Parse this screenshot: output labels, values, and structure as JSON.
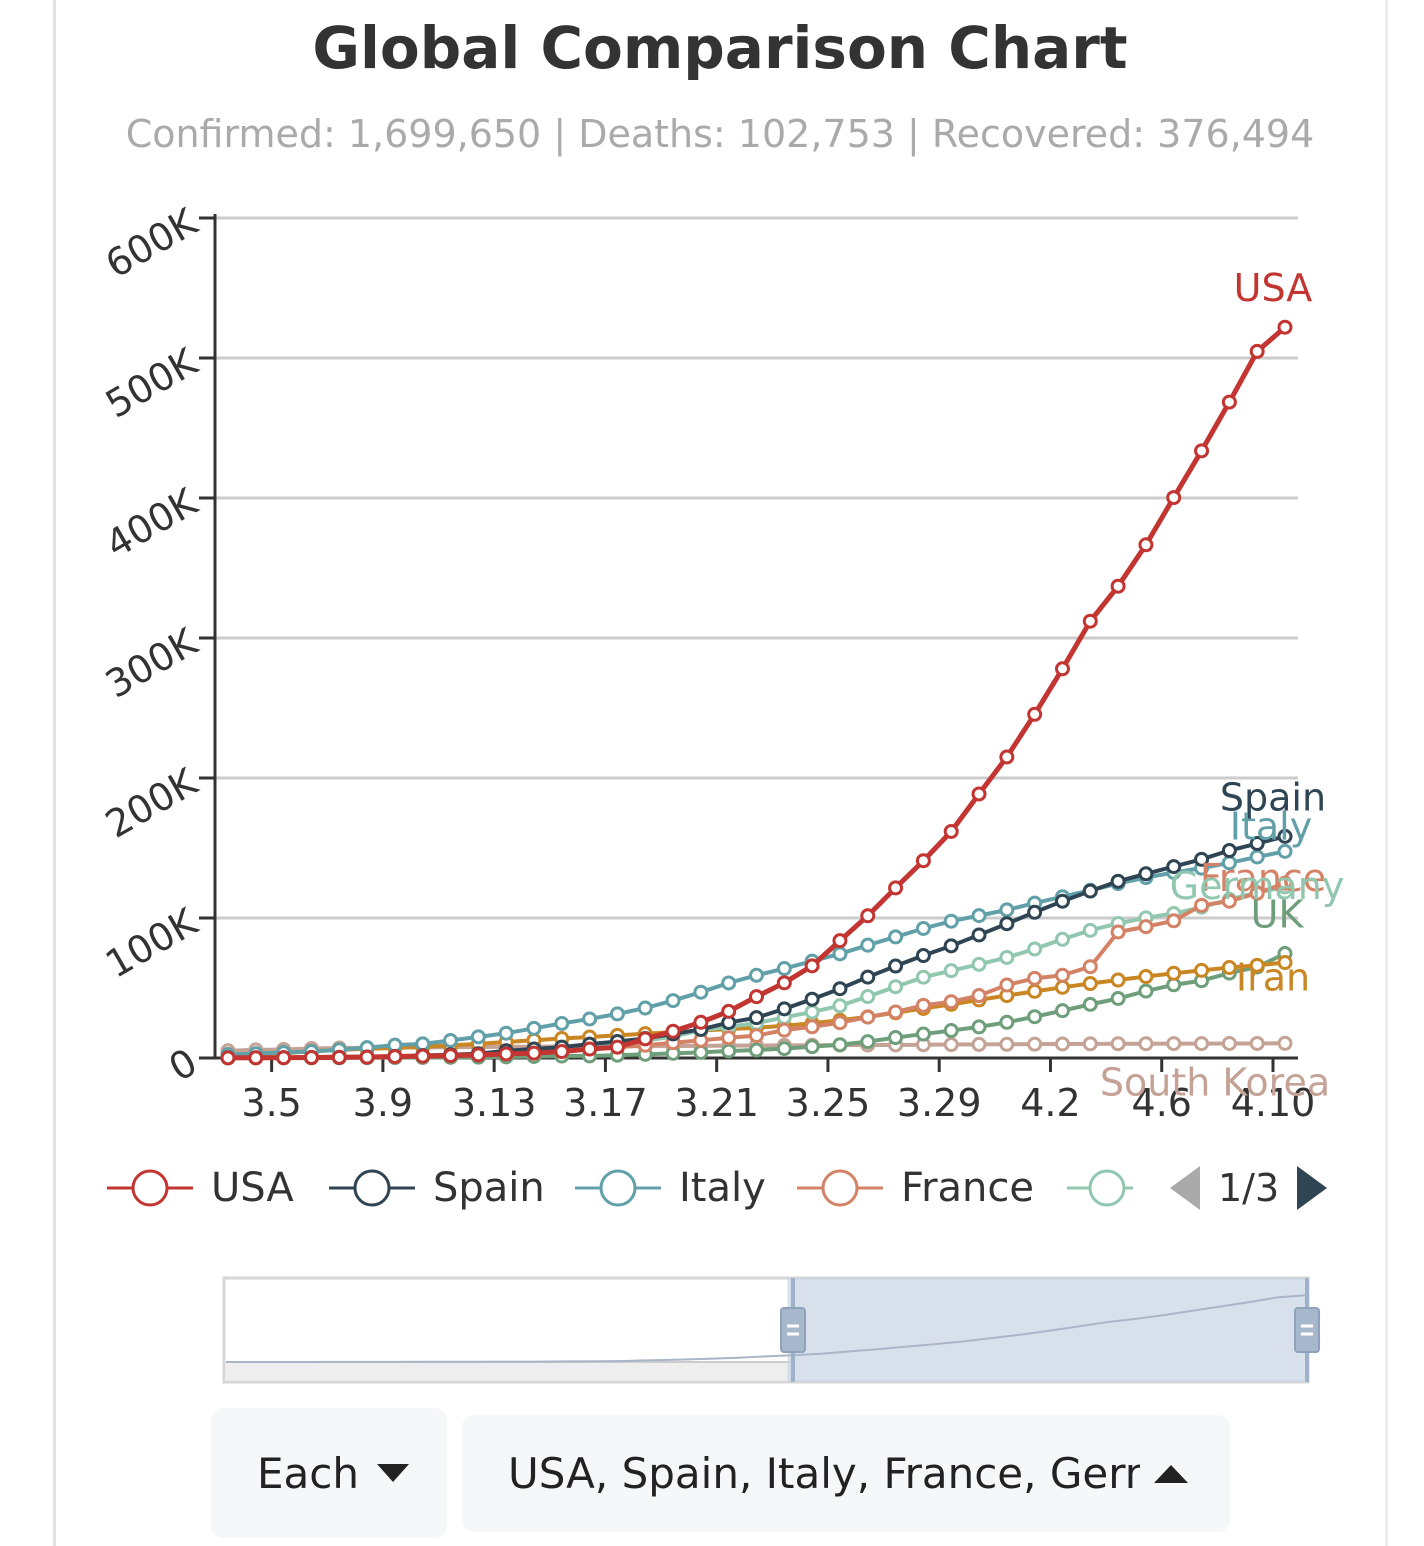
{
  "title": "Global Comparison Chart",
  "subtitle": "Confirmed: 1,699,650 | Deaths: 102,753 | Recovered: 376,494",
  "chart_data": {
    "type": "line",
    "title": "Global Comparison Chart",
    "x": [
      "3.3",
      "3.4",
      "3.5",
      "3.6",
      "3.7",
      "3.8",
      "3.9",
      "3.10",
      "3.11",
      "3.12",
      "3.13",
      "3.14",
      "3.15",
      "3.16",
      "3.17",
      "3.18",
      "3.19",
      "3.20",
      "3.21",
      "3.22",
      "3.23",
      "3.24",
      "3.25",
      "3.26",
      "3.27",
      "3.28",
      "3.29",
      "3.30",
      "3.31",
      "4.1",
      "4.2",
      "4.3",
      "4.4",
      "4.5",
      "4.6",
      "4.7",
      "4.8",
      "4.9",
      "4.10"
    ],
    "x_tick_labels": [
      "3.5",
      "3.9",
      "3.13",
      "3.17",
      "3.21",
      "3.25",
      "3.29",
      "4.2",
      "4.6",
      "4.10"
    ],
    "y_tick_labels": [
      "0",
      "100K",
      "200K",
      "300K",
      "400K",
      "500K",
      "600K"
    ],
    "ylim": [
      0,
      600000
    ],
    "grid": true,
    "legend_position": "bottom",
    "series": [
      {
        "name": "USA",
        "color": "#c23531",
        "values": [
          100,
          150,
          220,
          320,
          450,
          600,
          1000,
          1300,
          1700,
          2200,
          2900,
          3500,
          4600,
          6400,
          7800,
          13700,
          19100,
          25500,
          33300,
          43800,
          53700,
          65800,
          83800,
          101600,
          121500,
          140900,
          161800,
          188600,
          215000,
          245500,
          278000,
          312000,
          337000,
          366600,
          400300,
          433700,
          468500,
          504700,
          522000
        ]
      },
      {
        "name": "Spain",
        "color": "#2f4554",
        "values": [
          150,
          200,
          260,
          370,
          430,
          670,
          1200,
          1700,
          2300,
          3000,
          5200,
          6400,
          7800,
          9900,
          11800,
          13900,
          17200,
          20400,
          25300,
          28800,
          35100,
          42000,
          49500,
          57800,
          65700,
          73200,
          80100,
          87900,
          95900,
          104100,
          112000,
          119200,
          126200,
          131600,
          136700,
          141900,
          148200,
          153200,
          158300
        ]
      },
      {
        "name": "Italy",
        "color": "#61a0a8",
        "values": [
          2500,
          3100,
          3900,
          4600,
          5900,
          7400,
          9200,
          10100,
          12500,
          15100,
          17700,
          21200,
          24700,
          27900,
          31500,
          35700,
          41000,
          47000,
          53600,
          59100,
          63900,
          69200,
          74400,
          80600,
          86500,
          92500,
          97700,
          101700,
          105800,
          110600,
          115200,
          119800,
          124600,
          128900,
          132500,
          135600,
          139400,
          143600,
          147600
        ]
      },
      {
        "name": "France",
        "color": "#d48265",
        "values": [
          200,
          280,
          380,
          650,
          950,
          1100,
          1400,
          1800,
          2300,
          2900,
          3700,
          4500,
          5400,
          6600,
          7700,
          9100,
          10900,
          12600,
          14500,
          16000,
          19900,
          22300,
          25200,
          29200,
          32900,
          37600,
          40200,
          44600,
          52100,
          56900,
          59100,
          65200,
          90000,
          93800,
          98000,
          109000,
          112000,
          117700,
          124900
        ]
      },
      {
        "name": "Germany",
        "color": "#91c7ae",
        "values": [
          200,
          260,
          400,
          640,
          800,
          1000,
          1200,
          1600,
          1900,
          2700,
          3600,
          4600,
          5800,
          7300,
          9300,
          12300,
          15300,
          19800,
          22200,
          24900,
          29000,
          32900,
          37300,
          43900,
          50900,
          57700,
          62400,
          66900,
          71800,
          77900,
          84800,
          91200,
          96100,
          100100,
          103200,
          107700,
          113300,
          118200,
          122200
        ]
      },
      {
        "name": "Iran",
        "color": "#ca8622",
        "values": [
          2300,
          2900,
          3500,
          4700,
          5800,
          6600,
          7100,
          8000,
          9000,
          10100,
          11400,
          12700,
          13900,
          15000,
          16200,
          17400,
          18400,
          19600,
          20600,
          21600,
          23000,
          24800,
          27000,
          29400,
          32300,
          35400,
          38300,
          41500,
          44600,
          47600,
          50500,
          53200,
          55700,
          58200,
          60500,
          62600,
          64600,
          66200,
          68200
        ]
      },
      {
        "name": "UK",
        "color": "#6e9e7a",
        "values": [
          50,
          60,
          90,
          120,
          170,
          210,
          280,
          380,
          460,
          600,
          800,
          1100,
          1400,
          1500,
          2000,
          2600,
          3300,
          4000,
          5000,
          5700,
          6700,
          8100,
          9500,
          11700,
          14600,
          17100,
          19600,
          22200,
          25500,
          29500,
          33800,
          38300,
          42500,
          47800,
          52300,
          55200,
          60700,
          65000,
          74600
        ]
      },
      {
        "name": "South Korea",
        "color": "#c4a295",
        "values": [
          5200,
          5800,
          6100,
          6800,
          7100,
          7300,
          7500,
          7500,
          7800,
          7900,
          8000,
          8100,
          8200,
          8300,
          8400,
          8400,
          8600,
          8700,
          8800,
          8900,
          9000,
          9100,
          9200,
          9300,
          9300,
          9500,
          9600,
          9700,
          9800,
          9900,
          10000,
          10100,
          10200,
          10200,
          10300,
          10300,
          10400,
          10400,
          10500
        ]
      }
    ]
  },
  "legend": {
    "items": [
      {
        "label": "USA",
        "color": "#c23531"
      },
      {
        "label": "Spain",
        "color": "#2f4554"
      },
      {
        "label": "Italy",
        "color": "#61a0a8"
      },
      {
        "label": "France",
        "color": "#d48265"
      },
      {
        "label": "",
        "color": "#91c7ae"
      }
    ],
    "page": "1/3",
    "prev_icon": "triangle-left-icon",
    "next_icon": "triangle-right-icon"
  },
  "zoom": {
    "start_fraction": 0.52,
    "end_fraction": 1.0,
    "handle_icon": "drag-handle-icon"
  },
  "controls": {
    "mode_label": "Each",
    "mode_icon": "caret-down-icon",
    "countries_label": "USA, Spain, Italy, France, Germany",
    "countries_icon": "caret-up-icon"
  }
}
